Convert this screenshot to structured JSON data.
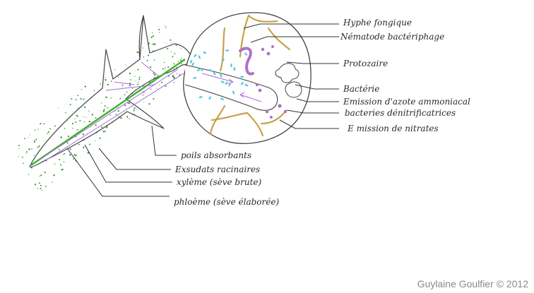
{
  "labels": {
    "hyphe": "Hyphe fongique",
    "nematode": "Nématode bactériphage",
    "protozoaire": "Protozaire",
    "bacterie": "Bactérie",
    "azote": "Emission d'azote ammoniacal",
    "denitrif": "bacteries dénitrificatrices",
    "nitrates": "E mission de nitrates",
    "poils": "poils absorbants",
    "exsudats": "Exsudats racinaires",
    "xyleme": "xylème (sève brute)",
    "phloeme": "phloème (sève élaborée)"
  },
  "credit": "Guylaine Goulfier © 2012",
  "colors": {
    "outline": "#444444",
    "xylem": "#3bb32b",
    "phloem": "#a86bd6",
    "fungus": "#c9a24a",
    "bacteria": "#5cc6e0",
    "soil": "#2f8f2f"
  }
}
